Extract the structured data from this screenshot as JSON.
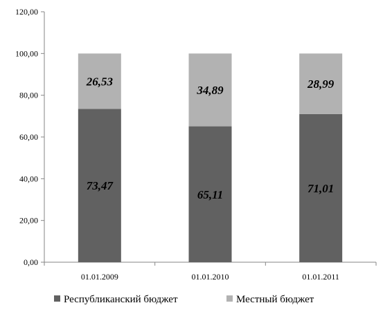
{
  "chart_data": {
    "type": "bar",
    "stacked": true,
    "categories": [
      "01.01.2009",
      "01.01.2010",
      "01.01.2011"
    ],
    "series": [
      {
        "name": "Республиканский бюджет",
        "values": [
          73.47,
          65.11,
          71.01
        ],
        "labels": [
          "73,47",
          "65,11",
          "71,01"
        ],
        "color": "#616161"
      },
      {
        "name": "Местный бюджет",
        "values": [
          26.53,
          34.89,
          28.99
        ],
        "labels": [
          "26,53",
          "34,89",
          "28,99"
        ],
        "color": "#b2b2b2"
      }
    ],
    "y_ticks": [
      "0,00",
      "20,00",
      "40,00",
      "60,00",
      "80,00",
      "100,00",
      "120,00"
    ],
    "ylim": [
      0,
      120
    ],
    "y_step": 20,
    "grid": false,
    "legend_position": "bottom"
  }
}
